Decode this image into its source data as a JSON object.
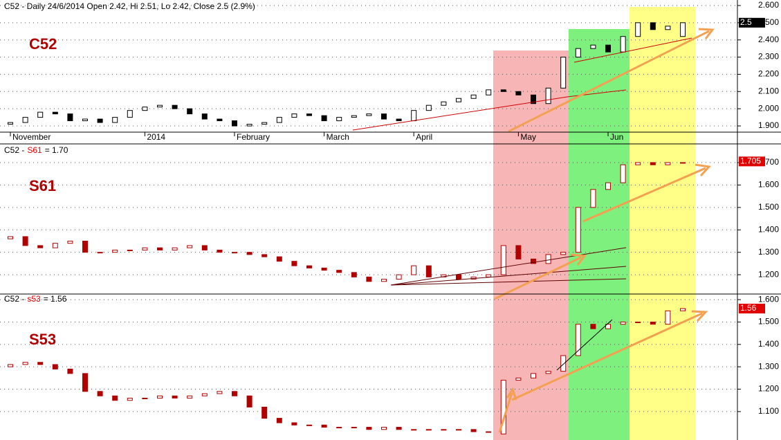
{
  "chart_data": [
    {
      "type": "candlestick",
      "title": "C52 - Daily 24/6/2014 Open 2.42, Hi 2.51, Lo 2.42, Close 2.5 (2.9%)",
      "label": "C52",
      "categories": [
        "November",
        null,
        null,
        null,
        null,
        null,
        null,
        null,
        null,
        "2014",
        null,
        null,
        null,
        null,
        null,
        "February",
        null,
        null,
        null,
        null,
        null,
        "March",
        null,
        null,
        null,
        null,
        null,
        "April",
        null,
        null,
        null,
        null,
        null,
        null,
        "May",
        null,
        null,
        null,
        null,
        null,
        "Jun",
        null,
        null,
        null,
        null,
        null
      ],
      "open": [
        1.91,
        1.92,
        1.95,
        1.98,
        1.97,
        1.93,
        1.94,
        1.92,
        1.95,
        1.99,
        2.01,
        2.02,
        2.0,
        1.97,
        1.94,
        1.93,
        1.9,
        1.91,
        1.92,
        1.95,
        1.97,
        1.96,
        1.93,
        1.95,
        1.96,
        1.97,
        1.94,
        1.93,
        1.99,
        2.02,
        2.04,
        2.06,
        2.08,
        2.11,
        2.1,
        2.08,
        2.03,
        2.12,
        2.3,
        2.35,
        2.37,
        2.33,
        2.42,
        2.5,
        2.46,
        2.42
      ],
      "close": [
        1.92,
        1.95,
        1.98,
        1.97,
        1.93,
        1.94,
        1.92,
        1.95,
        1.99,
        2.01,
        2.02,
        2.0,
        1.97,
        1.94,
        1.93,
        1.9,
        1.91,
        1.92,
        1.95,
        1.97,
        1.96,
        1.93,
        1.95,
        1.96,
        1.97,
        1.94,
        1.93,
        1.99,
        2.02,
        2.04,
        2.06,
        2.08,
        2.11,
        2.1,
        2.08,
        2.03,
        2.12,
        2.3,
        2.35,
        2.37,
        2.33,
        2.42,
        2.5,
        2.46,
        2.48,
        2.5
      ],
      "ylim": [
        1.868,
        2.632
      ],
      "yticks": [
        {
          "value": 1.9,
          "label": "1.900"
        },
        {
          "value": 2.0,
          "label": "2.000"
        },
        {
          "value": 2.1,
          "label": "2.100"
        },
        {
          "value": 2.2,
          "label": "2.200"
        },
        {
          "value": 2.3,
          "label": "2.300"
        },
        {
          "value": 2.4,
          "label": "2.400"
        },
        {
          "value": 2.5,
          "label": "2.500"
        },
        {
          "value": 2.6,
          "label": "2.600"
        }
      ],
      "last_price": 2.5,
      "tag_color": "#000000",
      "stroke": "#000000",
      "up_color": "#ffffff",
      "down_color": "#000000",
      "grid": true
    },
    {
      "type": "candlestick",
      "title_prefix": "C52 -",
      "symbol": "S61",
      "title_suffix": "= 1.70",
      "label": "S61",
      "open": [
        1.36,
        1.37,
        1.33,
        1.32,
        1.34,
        1.35,
        1.3,
        1.3,
        1.31,
        1.31,
        1.32,
        1.31,
        1.32,
        1.33,
        1.31,
        1.3,
        1.3,
        1.29,
        1.28,
        1.26,
        1.24,
        1.23,
        1.22,
        1.21,
        1.19,
        1.17,
        1.18,
        1.2,
        1.24,
        1.19,
        1.2,
        1.18,
        1.19,
        1.2,
        1.33,
        1.27,
        1.25,
        1.29,
        1.3,
        1.5,
        1.58,
        1.61,
        1.69,
        1.7,
        1.69,
        1.7
      ],
      "close": [
        1.37,
        1.33,
        1.32,
        1.34,
        1.35,
        1.3,
        1.3,
        1.31,
        1.31,
        1.32,
        1.31,
        1.32,
        1.33,
        1.31,
        1.3,
        1.3,
        1.29,
        1.28,
        1.26,
        1.24,
        1.23,
        1.22,
        1.21,
        1.19,
        1.17,
        1.18,
        1.2,
        1.24,
        1.19,
        1.2,
        1.18,
        1.19,
        1.2,
        1.33,
        1.27,
        1.25,
        1.29,
        1.3,
        1.5,
        1.58,
        1.61,
        1.69,
        1.7,
        1.69,
        1.7,
        1.7
      ],
      "ylim": [
        1.114,
        1.777
      ],
      "yticks": [
        {
          "value": 1.2,
          "label": "1.200"
        },
        {
          "value": 1.3,
          "label": "1.300"
        },
        {
          "value": 1.4,
          "label": "1.400"
        },
        {
          "value": 1.5,
          "label": "1.500"
        },
        {
          "value": 1.6,
          "label": "1.600"
        },
        {
          "value": 1.7,
          "label": "1.700"
        }
      ],
      "last_price": 1.705,
      "tag_color": "#e00000",
      "stroke": "#b00000",
      "up_color": "#ffffff",
      "down_color": "#b00000",
      "grid": true
    },
    {
      "type": "candlestick",
      "title_prefix": "C52 -",
      "symbol": "s53",
      "title_suffix": "= 1.56",
      "label": "S53",
      "open": [
        1.3,
        1.31,
        1.32,
        1.31,
        1.29,
        1.27,
        1.19,
        1.17,
        1.15,
        1.16,
        1.16,
        1.17,
        1.16,
        1.17,
        1.18,
        1.19,
        1.17,
        1.12,
        1.07,
        1.05,
        1.04,
        1.04,
        1.03,
        1.03,
        1.03,
        1.02,
        1.03,
        1.02,
        1.02,
        1.02,
        1.02,
        1.02,
        1.01,
        1.0,
        1.24,
        1.25,
        1.27,
        1.28,
        1.35,
        1.49,
        1.47,
        1.49,
        1.5,
        1.5,
        1.49,
        1.55
      ],
      "close": [
        1.31,
        1.32,
        1.31,
        1.29,
        1.27,
        1.19,
        1.17,
        1.15,
        1.16,
        1.16,
        1.17,
        1.16,
        1.17,
        1.18,
        1.19,
        1.17,
        1.12,
        1.07,
        1.05,
        1.04,
        1.04,
        1.03,
        1.03,
        1.03,
        1.02,
        1.03,
        1.02,
        1.02,
        1.02,
        1.02,
        1.02,
        1.01,
        1.01,
        1.24,
        1.25,
        1.27,
        1.28,
        1.35,
        1.49,
        1.47,
        1.49,
        1.5,
        1.5,
        1.49,
        1.55,
        1.56
      ],
      "ylim": [
        0.973,
        1.625
      ],
      "yticks": [
        {
          "value": 1.1,
          "label": "1.100"
        },
        {
          "value": 1.2,
          "label": "1.200"
        },
        {
          "value": 1.3,
          "label": "1.300"
        },
        {
          "value": 1.4,
          "label": "1.400"
        },
        {
          "value": 1.5,
          "label": "1.500"
        },
        {
          "value": 1.6,
          "label": "1.600"
        }
      ],
      "last_price": 1.56,
      "tag_color": "#e00000",
      "stroke": "#b00000",
      "up_color": "#ffffff",
      "down_color": "#b00000",
      "grid": true
    }
  ]
}
